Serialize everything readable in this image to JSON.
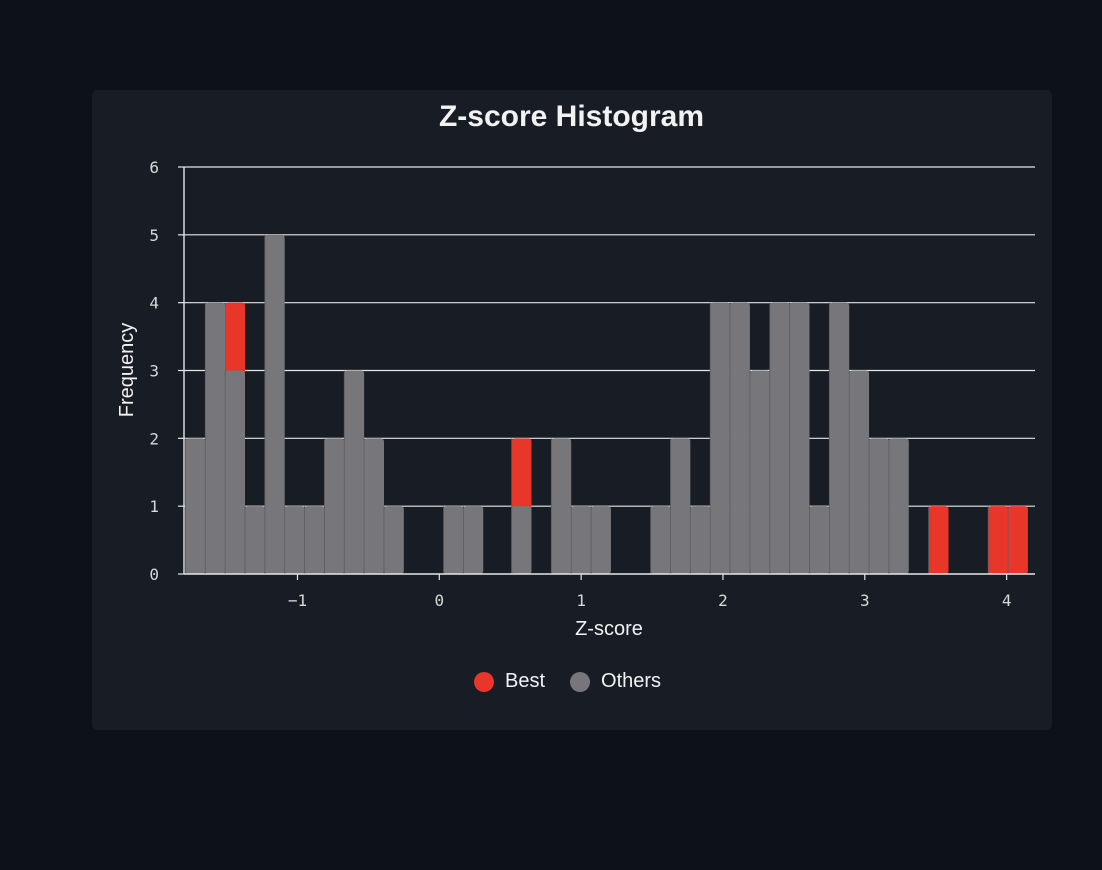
{
  "chart_data": {
    "type": "bar",
    "title": "Z-score Histogram",
    "xlabel": "Z-score",
    "ylabel": "Frequency",
    "xlim": [
      -1.8,
      4.2
    ],
    "ylim": [
      0,
      6
    ],
    "bin_width": 0.14,
    "x_ticks": [
      -1,
      0,
      1,
      2,
      3,
      4
    ],
    "y_ticks": [
      0,
      1,
      2,
      3,
      4,
      5,
      6
    ],
    "grid": true,
    "legend_position": "bottom",
    "series": [
      {
        "name": "Best",
        "color": "#e8362a",
        "bins": [
          {
            "x": -1.44,
            "y": 4
          },
          {
            "x": 0.58,
            "y": 2
          },
          {
            "x": 3.52,
            "y": 1
          },
          {
            "x": 3.94,
            "y": 1
          },
          {
            "x": 4.08,
            "y": 1
          }
        ]
      },
      {
        "name": "Others",
        "color": "#77777b",
        "bins": [
          {
            "x": -1.72,
            "y": 2
          },
          {
            "x": -1.58,
            "y": 4
          },
          {
            "x": -1.44,
            "y": 3
          },
          {
            "x": -1.3,
            "y": 1
          },
          {
            "x": -1.16,
            "y": 5
          },
          {
            "x": -1.02,
            "y": 1
          },
          {
            "x": -0.88,
            "y": 1
          },
          {
            "x": -0.74,
            "y": 2
          },
          {
            "x": -0.6,
            "y": 3
          },
          {
            "x": -0.46,
            "y": 2
          },
          {
            "x": -0.32,
            "y": 1
          },
          {
            "x": 0.1,
            "y": 1
          },
          {
            "x": 0.24,
            "y": 1
          },
          {
            "x": 0.58,
            "y": 1
          },
          {
            "x": 0.86,
            "y": 2
          },
          {
            "x": 1.0,
            "y": 1
          },
          {
            "x": 1.14,
            "y": 1
          },
          {
            "x": 1.56,
            "y": 1
          },
          {
            "x": 1.7,
            "y": 2
          },
          {
            "x": 1.84,
            "y": 1
          },
          {
            "x": 1.98,
            "y": 4
          },
          {
            "x": 2.12,
            "y": 4
          },
          {
            "x": 2.26,
            "y": 3
          },
          {
            "x": 2.4,
            "y": 4
          },
          {
            "x": 2.54,
            "y": 4
          },
          {
            "x": 2.68,
            "y": 1
          },
          {
            "x": 2.82,
            "y": 4
          },
          {
            "x": 2.96,
            "y": 3
          },
          {
            "x": 3.1,
            "y": 2
          },
          {
            "x": 3.24,
            "y": 2
          }
        ]
      }
    ]
  }
}
